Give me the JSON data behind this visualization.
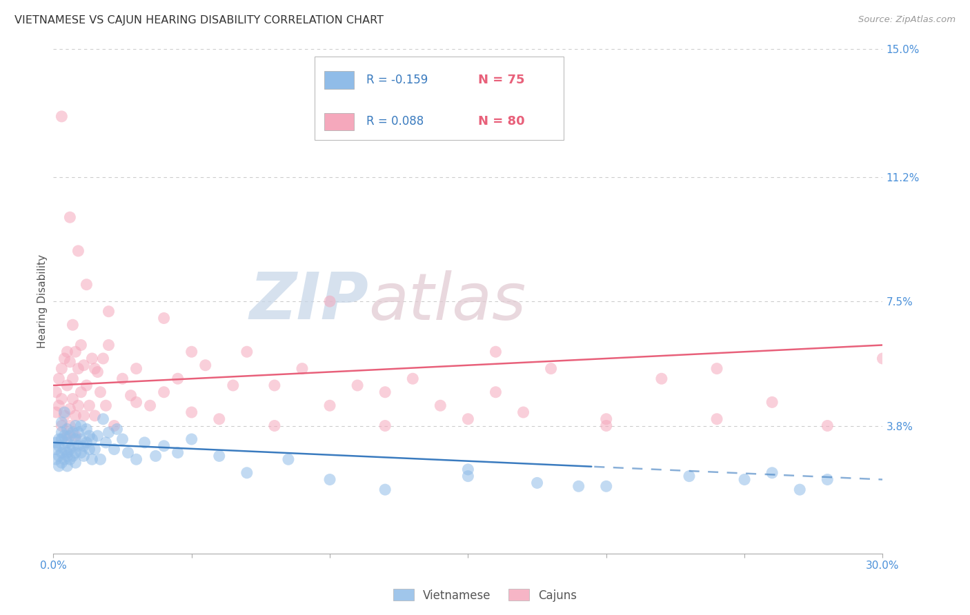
{
  "title": "VIETNAMESE VS CAJUN HEARING DISABILITY CORRELATION CHART",
  "source": "Source: ZipAtlas.com",
  "ylabel": "Hearing Disability",
  "xlim": [
    0.0,
    0.3
  ],
  "ylim": [
    0.0,
    0.15
  ],
  "xticks": [
    0.0,
    0.05,
    0.1,
    0.15,
    0.2,
    0.25,
    0.3
  ],
  "xtick_labels": [
    "0.0%",
    "",
    "",
    "",
    "",
    "",
    "30.0%"
  ],
  "ytick_vals": [
    0.0,
    0.038,
    0.075,
    0.112,
    0.15
  ],
  "ytick_labels": [
    "",
    "3.8%",
    "7.5%",
    "11.2%",
    "15.0%"
  ],
  "background_color": "#ffffff",
  "grid_color": "#cccccc",
  "legend_R_viet": "R = -0.159",
  "legend_N_viet": "N = 75",
  "legend_R_cajun": "R = 0.088",
  "legend_N_cajun": "N = 80",
  "viet_color": "#90bce8",
  "cajun_color": "#f5a8bc",
  "viet_line_color": "#3a7bbf",
  "cajun_line_color": "#e8607a",
  "text_color_blue": "#3a7bbf",
  "text_color_pink": "#e8607a",
  "tick_color_blue": "#4a90d9",
  "watermark_zip": "ZIP",
  "watermark_atlas": "atlas",
  "note_viet_x": [
    0.001,
    0.001,
    0.001,
    0.002,
    0.002,
    0.002,
    0.002,
    0.003,
    0.003,
    0.003,
    0.003,
    0.003,
    0.004,
    0.004,
    0.004,
    0.004,
    0.005,
    0.005,
    0.005,
    0.005,
    0.005,
    0.006,
    0.006,
    0.006,
    0.007,
    0.007,
    0.007,
    0.008,
    0.008,
    0.008,
    0.008,
    0.009,
    0.009,
    0.01,
    0.01,
    0.01,
    0.011,
    0.011,
    0.012,
    0.012,
    0.013,
    0.013,
    0.014,
    0.014,
    0.015,
    0.016,
    0.017,
    0.018,
    0.019,
    0.02,
    0.022,
    0.023,
    0.025,
    0.027,
    0.03,
    0.033,
    0.037,
    0.04,
    0.045,
    0.05,
    0.06,
    0.07,
    0.085,
    0.1,
    0.12,
    0.15,
    0.175,
    0.2,
    0.23,
    0.26,
    0.28,
    0.15,
    0.19,
    0.25,
    0.27
  ],
  "note_viet_y": [
    0.031,
    0.033,
    0.028,
    0.034,
    0.029,
    0.032,
    0.026,
    0.036,
    0.03,
    0.034,
    0.027,
    0.039,
    0.031,
    0.035,
    0.028,
    0.042,
    0.033,
    0.037,
    0.03,
    0.029,
    0.026,
    0.035,
    0.031,
    0.028,
    0.036,
    0.032,
    0.029,
    0.034,
    0.03,
    0.038,
    0.027,
    0.032,
    0.036,
    0.034,
    0.03,
    0.038,
    0.032,
    0.029,
    0.037,
    0.033,
    0.035,
    0.031,
    0.034,
    0.028,
    0.031,
    0.035,
    0.028,
    0.04,
    0.033,
    0.036,
    0.031,
    0.037,
    0.034,
    0.03,
    0.028,
    0.033,
    0.029,
    0.032,
    0.03,
    0.034,
    0.029,
    0.024,
    0.028,
    0.022,
    0.019,
    0.023,
    0.021,
    0.02,
    0.023,
    0.024,
    0.022,
    0.025,
    0.02,
    0.022,
    0.019
  ],
  "note_cajun_x": [
    0.001,
    0.001,
    0.002,
    0.002,
    0.003,
    0.003,
    0.003,
    0.004,
    0.004,
    0.005,
    0.005,
    0.005,
    0.006,
    0.006,
    0.006,
    0.007,
    0.007,
    0.008,
    0.008,
    0.008,
    0.009,
    0.009,
    0.01,
    0.01,
    0.011,
    0.011,
    0.012,
    0.013,
    0.014,
    0.015,
    0.016,
    0.017,
    0.018,
    0.019,
    0.02,
    0.022,
    0.025,
    0.028,
    0.03,
    0.035,
    0.04,
    0.045,
    0.05,
    0.055,
    0.06,
    0.065,
    0.07,
    0.08,
    0.09,
    0.1,
    0.11,
    0.12,
    0.13,
    0.14,
    0.15,
    0.16,
    0.17,
    0.18,
    0.2,
    0.22,
    0.24,
    0.26,
    0.28,
    0.3,
    0.007,
    0.015,
    0.03,
    0.05,
    0.08,
    0.12,
    0.16,
    0.2,
    0.24,
    0.003,
    0.006,
    0.009,
    0.012,
    0.02,
    0.04,
    0.1
  ],
  "note_cajun_y": [
    0.042,
    0.048,
    0.044,
    0.052,
    0.038,
    0.046,
    0.055,
    0.041,
    0.058,
    0.035,
    0.05,
    0.06,
    0.043,
    0.057,
    0.038,
    0.052,
    0.046,
    0.041,
    0.06,
    0.035,
    0.055,
    0.044,
    0.048,
    0.062,
    0.041,
    0.056,
    0.05,
    0.044,
    0.058,
    0.041,
    0.054,
    0.048,
    0.058,
    0.044,
    0.062,
    0.038,
    0.052,
    0.047,
    0.055,
    0.044,
    0.048,
    0.052,
    0.042,
    0.056,
    0.04,
    0.05,
    0.06,
    0.038,
    0.055,
    0.044,
    0.05,
    0.038,
    0.052,
    0.044,
    0.04,
    0.048,
    0.042,
    0.055,
    0.038,
    0.052,
    0.04,
    0.045,
    0.038,
    0.058,
    0.068,
    0.055,
    0.045,
    0.06,
    0.05,
    0.048,
    0.06,
    0.04,
    0.055,
    0.13,
    0.1,
    0.09,
    0.08,
    0.072,
    0.07,
    0.075
  ]
}
